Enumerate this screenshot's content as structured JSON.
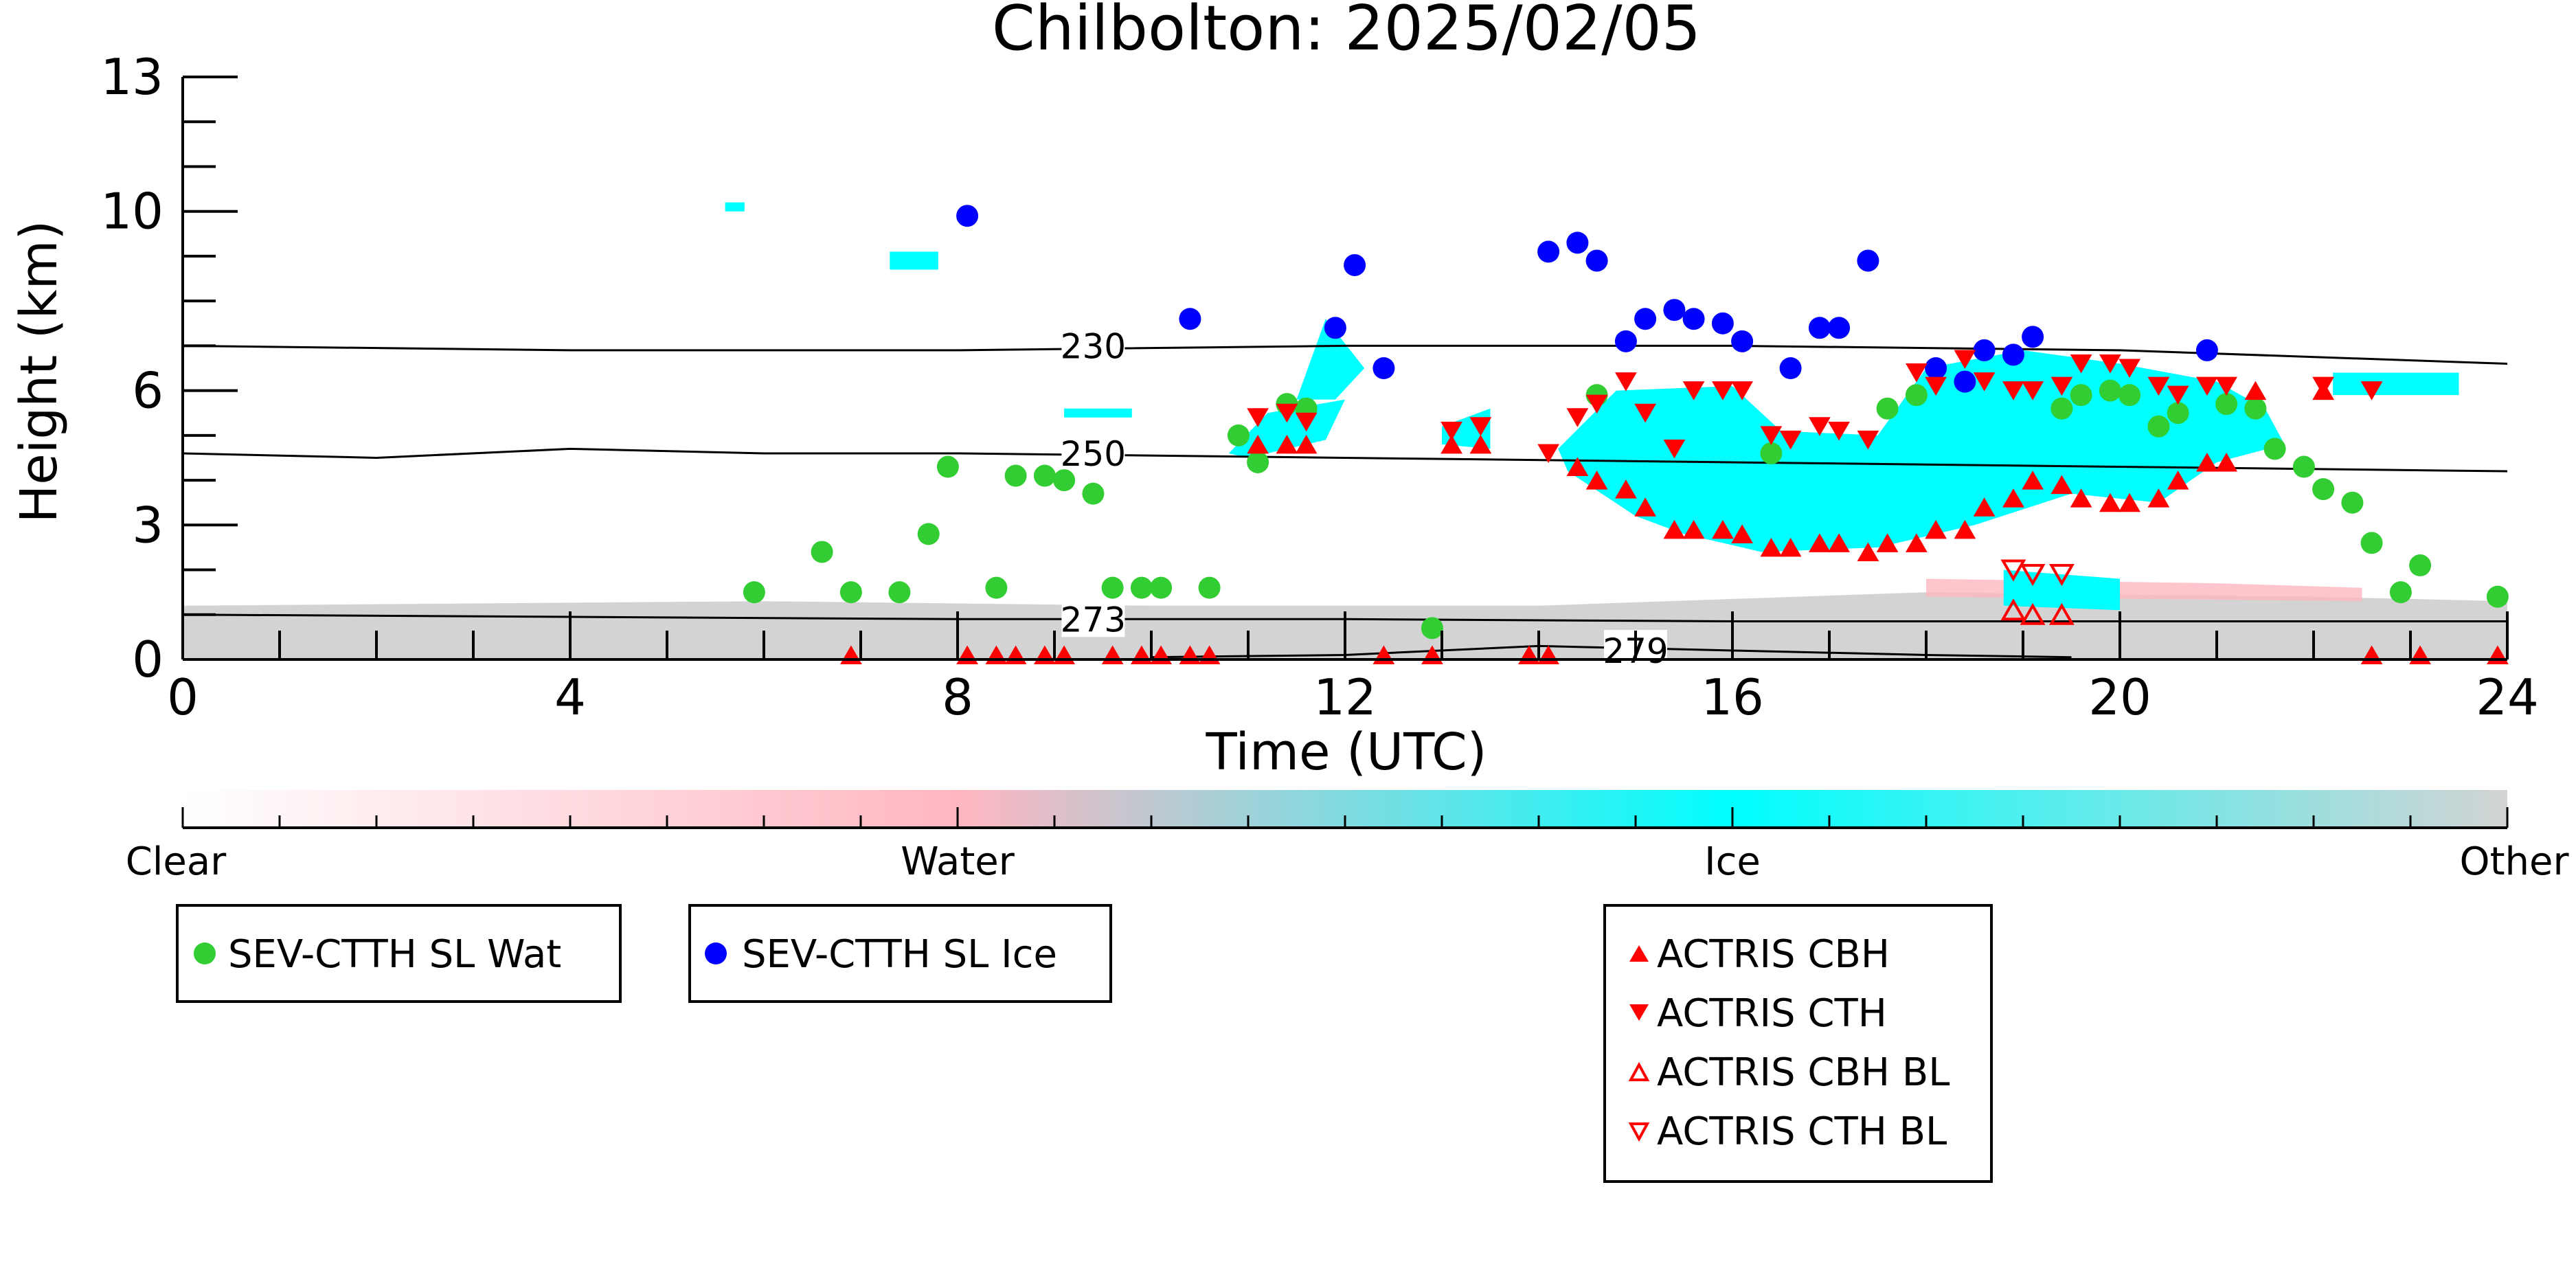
{
  "chart_data": {
    "type": "scatter",
    "title": "Chilbolton: 2025/02/05",
    "xlabel": "Time (UTC)",
    "ylabel": "Height (km)",
    "xlim": [
      0,
      24
    ],
    "ylim": [
      0,
      13
    ],
    "xticks": [
      "0",
      "4",
      "8",
      "12",
      "16",
      "20",
      "24"
    ],
    "yticks": [
      "0",
      "3",
      "6",
      "10",
      "13"
    ],
    "ytick_values": [
      0,
      3,
      6,
      10,
      13
    ],
    "colorbar": {
      "labels": [
        "Clear",
        "Water",
        "Ice",
        "Other"
      ],
      "colors": [
        "#ffffff",
        "#ffb6c1",
        "#00ffff",
        "#d3d3d3"
      ]
    },
    "contours": [
      {
        "label": "230",
        "x": [
          0,
          4,
          8,
          12,
          16,
          20,
          24
        ],
        "y": [
          7.0,
          6.9,
          6.9,
          7.0,
          7.0,
          6.9,
          6.6
        ]
      },
      {
        "label": "250",
        "x": [
          0,
          2,
          4,
          6,
          8,
          12,
          16,
          20,
          24
        ],
        "y": [
          4.6,
          4.5,
          4.7,
          4.6,
          4.6,
          4.5,
          4.4,
          4.3,
          4.2
        ]
      },
      {
        "label": "273",
        "x": [
          0,
          4,
          8,
          12,
          16,
          20,
          24
        ],
        "y": [
          1.0,
          0.95,
          0.9,
          0.9,
          0.85,
          0.85,
          0.85
        ]
      },
      {
        "label": "279",
        "x": [
          10,
          12,
          14,
          16,
          18,
          19.5
        ],
        "y": [
          0.05,
          0.1,
          0.3,
          0.2,
          0.1,
          0.05
        ]
      }
    ],
    "series": [
      {
        "name": "SEV-CTTH SL Wat",
        "color": "#32cd32",
        "marker": "circle",
        "x": [
          5.9,
          6.6,
          6.9,
          7.4,
          7.7,
          7.9,
          8.4,
          8.6,
          8.9,
          9.1,
          9.4,
          9.6,
          9.9,
          10.1,
          10.6,
          10.9,
          11.1,
          11.4,
          11.6,
          12.9,
          14.6,
          16.4,
          17.6,
          17.9,
          19.4,
          19.6,
          19.9,
          20.1,
          20.4,
          20.6,
          21.1,
          21.4,
          21.6,
          21.9,
          22.1,
          22.4,
          22.6,
          22.9,
          23.1,
          23.9
        ],
        "y": [
          1.5,
          2.4,
          1.5,
          1.5,
          2.8,
          4.3,
          1.6,
          4.1,
          4.1,
          4.0,
          3.7,
          1.6,
          1.6,
          1.6,
          1.6,
          5.0,
          4.4,
          5.7,
          5.6,
          0.7,
          5.9,
          4.6,
          5.6,
          5.9,
          5.6,
          5.9,
          6.0,
          5.9,
          5.2,
          5.5,
          5.7,
          5.6,
          4.7,
          4.3,
          3.8,
          3.5,
          2.6,
          1.5,
          2.1,
          1.4
        ]
      },
      {
        "name": "SEV-CTTH SL Ice",
        "color": "#0000ff",
        "marker": "circle",
        "x": [
          8.1,
          10.4,
          11.9,
          12.1,
          12.4,
          14.1,
          14.4,
          14.6,
          14.9,
          15.1,
          15.4,
          15.6,
          15.9,
          16.1,
          16.6,
          16.9,
          17.1,
          17.4,
          18.1,
          18.4,
          18.6,
          18.9,
          19.1,
          20.9
        ],
        "y": [
          9.9,
          7.6,
          7.4,
          8.8,
          6.5,
          9.1,
          9.3,
          8.9,
          7.1,
          7.6,
          7.8,
          7.6,
          7.5,
          7.1,
          6.5,
          7.4,
          7.4,
          8.9,
          6.5,
          6.2,
          6.9,
          6.8,
          7.2,
          6.9
        ]
      },
      {
        "name": "ACTRIS CBH",
        "color": "#ff0000",
        "marker": "triangle-up",
        "x": [
          6.9,
          8.1,
          8.4,
          8.6,
          8.9,
          9.1,
          9.6,
          9.9,
          10.1,
          10.4,
          10.6,
          11.1,
          11.4,
          11.6,
          12.4,
          12.9,
          13.1,
          13.4,
          13.9,
          14.1,
          14.4,
          14.6,
          14.9,
          15.1,
          15.4,
          15.6,
          15.9,
          16.1,
          16.4,
          16.6,
          16.9,
          17.1,
          17.4,
          17.6,
          17.9,
          18.1,
          18.4,
          18.6,
          18.9,
          19.1,
          19.4,
          19.6,
          19.9,
          20.1,
          20.4,
          20.6,
          20.9,
          21.1,
          21.4,
          22.1,
          22.6,
          23.1,
          23.9
        ],
        "y": [
          0.1,
          0.1,
          0.1,
          0.1,
          0.1,
          0.1,
          0.1,
          0.1,
          0.1,
          0.1,
          0.1,
          4.8,
          4.8,
          4.8,
          0.1,
          0.1,
          4.8,
          4.8,
          0.1,
          0.1,
          4.3,
          4.0,
          3.8,
          3.4,
          2.9,
          2.9,
          2.9,
          2.8,
          2.5,
          2.5,
          2.6,
          2.6,
          2.4,
          2.6,
          2.6,
          2.9,
          2.9,
          3.4,
          3.6,
          4.0,
          3.9,
          3.6,
          3.5,
          3.5,
          3.6,
          4.0,
          4.4,
          4.4,
          6.0,
          6.0,
          0.1,
          0.1,
          0.1
        ]
      },
      {
        "name": "ACTRIS CTH",
        "color": "#ff0000",
        "marker": "triangle-down",
        "x": [
          11.1,
          11.4,
          11.6,
          13.1,
          13.4,
          14.1,
          14.4,
          14.6,
          14.9,
          15.1,
          15.4,
          15.6,
          15.9,
          16.1,
          16.4,
          16.6,
          16.9,
          17.1,
          17.4,
          17.9,
          18.1,
          18.4,
          18.6,
          18.9,
          19.1,
          19.4,
          19.6,
          19.9,
          20.1,
          20.4,
          20.6,
          20.9,
          21.1,
          22.1,
          22.6
        ],
        "y": [
          5.4,
          5.5,
          5.3,
          5.1,
          5.2,
          4.6,
          5.4,
          5.7,
          6.2,
          5.5,
          4.7,
          6.0,
          6.0,
          6.0,
          5.0,
          4.9,
          5.2,
          5.1,
          4.9,
          6.4,
          6.1,
          6.7,
          6.2,
          6.0,
          6.0,
          6.1,
          6.6,
          6.6,
          6.5,
          6.1,
          5.9,
          6.1,
          6.1,
          6.1,
          6.0
        ]
      },
      {
        "name": "ACTRIS CBH BL",
        "color": "#ff0000",
        "marker": "triangle-up-open",
        "x": [
          18.9,
          19.1,
          19.4
        ],
        "y": [
          1.1,
          1.0,
          1.0
        ]
      },
      {
        "name": "ACTRIS CTH BL",
        "color": "#ff0000",
        "marker": "triangle-down-open",
        "x": [
          18.9,
          19.1,
          19.4
        ],
        "y": [
          2.0,
          1.9,
          1.9
        ]
      }
    ],
    "cloud_regions": [
      {
        "phase": "Other",
        "polygon": [
          [
            0,
            0
          ],
          [
            0,
            1.2
          ],
          [
            6,
            1.3
          ],
          [
            10,
            1.2
          ],
          [
            14,
            1.2
          ],
          [
            18,
            1.5
          ],
          [
            22,
            1.4
          ],
          [
            24,
            1.3
          ],
          [
            24,
            0
          ]
        ]
      },
      {
        "phase": "Water",
        "polygon": [
          [
            18,
            1.4
          ],
          [
            18,
            1.8
          ],
          [
            21,
            1.7
          ],
          [
            22.5,
            1.6
          ],
          [
            22.5,
            1.3
          ],
          [
            18,
            1.4
          ]
        ]
      },
      {
        "phase": "Ice",
        "polygon": [
          [
            10.8,
            4.6
          ],
          [
            11.2,
            5.5
          ],
          [
            12,
            5.8
          ],
          [
            11.8,
            4.9
          ],
          [
            11,
            4.5
          ]
        ]
      },
      {
        "phase": "Ice",
        "polygon": [
          [
            13,
            5.2
          ],
          [
            13.5,
            5.6
          ],
          [
            13.5,
            4.7
          ],
          [
            13,
            4.8
          ]
        ]
      },
      {
        "phase": "Ice",
        "polygon": [
          [
            14.2,
            4.7
          ],
          [
            14.8,
            6.0
          ],
          [
            16,
            6.1
          ],
          [
            16.5,
            5.1
          ],
          [
            17.5,
            5.0
          ],
          [
            18,
            6.5
          ],
          [
            19,
            6.9
          ],
          [
            20,
            6.6
          ],
          [
            21,
            6.2
          ],
          [
            21.5,
            5.6
          ],
          [
            21.7,
            4.8
          ],
          [
            21,
            4.4
          ],
          [
            20.4,
            3.5
          ],
          [
            19.5,
            3.7
          ],
          [
            18.5,
            3.0
          ],
          [
            17.5,
            2.5
          ],
          [
            16.3,
            2.4
          ],
          [
            15.5,
            2.8
          ],
          [
            15,
            3.2
          ],
          [
            14.3,
            4.2
          ]
        ]
      },
      {
        "phase": "Ice",
        "polygon": [
          [
            18.8,
            1.2
          ],
          [
            18.8,
            2.0
          ],
          [
            20,
            1.8
          ],
          [
            20,
            1.1
          ]
        ]
      },
      {
        "phase": "Ice",
        "polygon": [
          [
            11.5,
            5.8
          ],
          [
            11.8,
            7.6
          ],
          [
            12.2,
            6.5
          ],
          [
            11.9,
            5.8
          ]
        ]
      },
      {
        "phase": "Ice",
        "polygon": [
          [
            22.2,
            5.9
          ],
          [
            22.2,
            6.4
          ],
          [
            23.5,
            6.4
          ],
          [
            23.5,
            5.9
          ]
        ]
      },
      {
        "phase": "Ice",
        "polygon": [
          [
            5.6,
            10.0
          ],
          [
            5.6,
            10.2
          ],
          [
            5.8,
            10.2
          ],
          [
            5.8,
            10.0
          ]
        ]
      },
      {
        "phase": "Ice",
        "polygon": [
          [
            7.3,
            8.7
          ],
          [
            7.3,
            9.1
          ],
          [
            7.8,
            9.1
          ],
          [
            7.8,
            8.7
          ]
        ]
      },
      {
        "phase": "Ice",
        "polygon": [
          [
            9.1,
            5.4
          ],
          [
            9.1,
            5.6
          ],
          [
            9.8,
            5.6
          ],
          [
            9.8,
            5.4
          ]
        ]
      }
    ]
  }
}
